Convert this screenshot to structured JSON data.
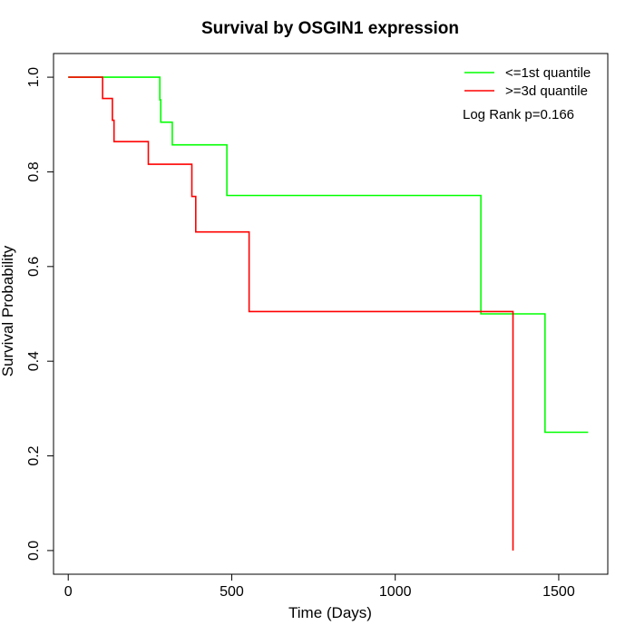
{
  "chart_data": {
    "type": "line",
    "title": "Survival by OSGIN1 expression",
    "xlabel": "Time (Days)",
    "ylabel": "Survival Probability",
    "xlim": [
      -45,
      1650
    ],
    "ylim": [
      -0.05,
      1.05
    ],
    "x_ticks": [
      0,
      500,
      1000,
      1500
    ],
    "y_ticks": [
      0.0,
      0.2,
      0.4,
      0.6,
      0.8,
      1.0
    ],
    "x_tick_labels": [
      "0",
      "500",
      "1000",
      "1500"
    ],
    "y_tick_labels": [
      "0.0",
      "0.2",
      "0.4",
      "0.6",
      "0.8",
      "1.0"
    ],
    "grid": false,
    "legend_position": "top-right",
    "annotation": "Log Rank p=0.166",
    "series": [
      {
        "name": "<=1st quantile",
        "color": "#00ff00",
        "points": [
          [
            0,
            1.0
          ],
          [
            280,
            1.0
          ],
          [
            280,
            0.952
          ],
          [
            283,
            0.952
          ],
          [
            283,
            0.905
          ],
          [
            318,
            0.905
          ],
          [
            318,
            0.857
          ],
          [
            485,
            0.857
          ],
          [
            485,
            0.75
          ],
          [
            1262,
            0.75
          ],
          [
            1262,
            0.5
          ],
          [
            1458,
            0.5
          ],
          [
            1458,
            0.25
          ],
          [
            1590,
            0.25
          ]
        ]
      },
      {
        "name": ">=3d quantile",
        "color": "#ff0000",
        "points": [
          [
            0,
            1.0
          ],
          [
            105,
            1.0
          ],
          [
            105,
            0.955
          ],
          [
            135,
            0.955
          ],
          [
            135,
            0.909
          ],
          [
            140,
            0.909
          ],
          [
            140,
            0.864
          ],
          [
            245,
            0.864
          ],
          [
            245,
            0.816
          ],
          [
            378,
            0.816
          ],
          [
            378,
            0.748
          ],
          [
            390,
            0.748
          ],
          [
            390,
            0.673
          ],
          [
            553,
            0.673
          ],
          [
            553,
            0.505
          ],
          [
            1360,
            0.505
          ],
          [
            1360,
            0.0
          ]
        ]
      }
    ]
  }
}
